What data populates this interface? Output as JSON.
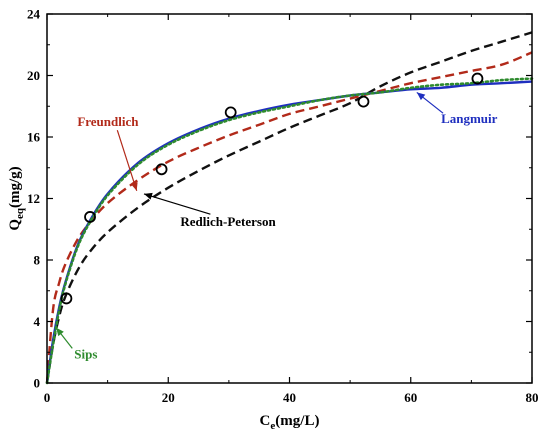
{
  "chart_data": {
    "type": "scatter",
    "x_label_main": "C",
    "x_label_sub": "e",
    "x_label_unit": "(mg/L)",
    "y_label_main": "Q",
    "y_label_sub": "eq",
    "y_label_unit": "(mg/g)",
    "xlim": [
      0,
      80
    ],
    "ylim": [
      0,
      24
    ],
    "x_ticks": [
      "0",
      "20",
      "40",
      "60",
      "80"
    ],
    "y_ticks": [
      "0",
      "4",
      "8",
      "12",
      "16",
      "20",
      "24"
    ],
    "grid": false,
    "experimental_points": [
      {
        "x": 3.2,
        "y": 5.5
      },
      {
        "x": 7.1,
        "y": 10.8
      },
      {
        "x": 18.9,
        "y": 13.9
      },
      {
        "x": 30.3,
        "y": 17.6
      },
      {
        "x": 52.2,
        "y": 18.3
      },
      {
        "x": 71.0,
        "y": 19.8
      }
    ],
    "series": [
      {
        "name": "Langmuir",
        "color": "#1f2fbf",
        "style": "solid",
        "x": [
          0,
          1,
          2,
          3,
          5,
          7,
          10,
          15,
          20,
          25,
          30,
          35,
          40,
          45,
          50,
          55,
          60,
          65,
          70,
          75,
          80
        ],
        "y": [
          0,
          2.8,
          4.9,
          6.5,
          8.9,
          10.5,
          12.3,
          14.3,
          15.6,
          16.5,
          17.2,
          17.7,
          18.1,
          18.4,
          18.7,
          18.9,
          19.1,
          19.2,
          19.4,
          19.5,
          19.6
        ]
      },
      {
        "name": "Sips",
        "color": "#2e8b2e",
        "style": "dotted",
        "x": [
          0,
          1,
          2,
          3,
          5,
          7,
          10,
          15,
          20,
          25,
          30,
          35,
          40,
          45,
          50,
          55,
          60,
          65,
          70,
          75,
          80
        ],
        "y": [
          0,
          2.5,
          4.7,
          6.4,
          8.8,
          10.4,
          12.2,
          14.2,
          15.5,
          16.4,
          17.1,
          17.6,
          18.0,
          18.4,
          18.7,
          18.9,
          19.2,
          19.4,
          19.5,
          19.7,
          19.8
        ]
      },
      {
        "name": "Freundlich",
        "color": "#b22a1a",
        "style": "dashed",
        "x": [
          0,
          1,
          2,
          3,
          5,
          7,
          10,
          15,
          20,
          25,
          30,
          35,
          40,
          45,
          50,
          55,
          60,
          65,
          70,
          75,
          80
        ],
        "y": [
          0,
          4.8,
          6.5,
          7.7,
          9.3,
          10.4,
          11.7,
          13.2,
          14.4,
          15.3,
          16.1,
          16.8,
          17.5,
          18.0,
          18.5,
          19.0,
          19.5,
          19.9,
          20.3,
          20.7,
          21.5
        ]
      },
      {
        "name": "Redlich-Peterson",
        "color": "#111111",
        "style": "dashed",
        "x": [
          0,
          1,
          2,
          3,
          5,
          7,
          10,
          15,
          20,
          25,
          30,
          35,
          40,
          45,
          50,
          55,
          60,
          65,
          70,
          75,
          80
        ],
        "y": [
          0,
          2.5,
          4.3,
          5.6,
          7.3,
          8.5,
          9.8,
          11.4,
          12.7,
          13.8,
          14.8,
          15.7,
          16.6,
          17.4,
          18.2,
          19.3,
          20.2,
          20.9,
          21.6,
          22.2,
          22.8
        ]
      }
    ],
    "annotations": [
      {
        "text": "Freundlich",
        "color": "#b22a1a",
        "label_x": 5.0,
        "label_y": 16.7,
        "arrow_to": [
          14.8,
          12.5
        ]
      },
      {
        "text": "Redlich-Peterson",
        "color": "#000000",
        "label_x": 22.0,
        "label_y": 10.2,
        "arrow_to": [
          16.0,
          12.3
        ]
      },
      {
        "text": "Langmuir",
        "color": "#1f2fbf",
        "label_x": 65.0,
        "label_y": 16.9,
        "arrow_to": [
          61.0,
          18.9
        ]
      },
      {
        "text": "Sips",
        "color": "#2e8b2e",
        "label_x": 4.5,
        "label_y": 1.6,
        "arrow_to": [
          1.5,
          3.6
        ]
      }
    ]
  }
}
